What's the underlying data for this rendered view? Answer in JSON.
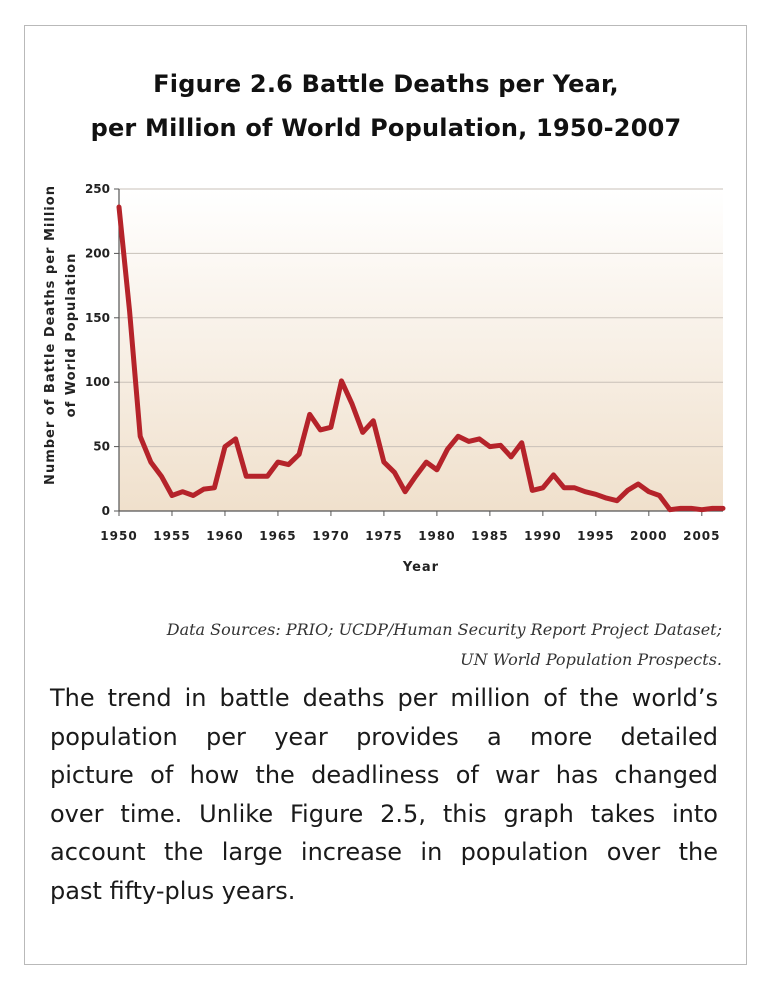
{
  "title_line1": "Figure 2.6 Battle Deaths per Year,",
  "title_line2": "per Million of World Population, 1950-2007",
  "source_line1": "Data Sources: PRIO; UCDP/Human Security Report Project Dataset;",
  "source_line2": "UN World Population Prospects.",
  "body_lines": [
    "The trend in battle deaths per million of the world’s",
    "population per year provides a more detailed",
    "picture of how the deadliness of war has changed",
    "over time. Unlike Figure 2.5, this graph takes into",
    "account the large increase in population over the",
    "past fifty-plus years."
  ],
  "colors": {
    "line": "#b5232a",
    "plot_bg_top": "#ffffff",
    "plot_bg_bottom": "#f0e0cc",
    "grid": "#c8c0b8"
  },
  "chart_data": {
    "type": "line",
    "xlabel": "Year",
    "ylabel_line1": "Number of Battle Deaths per Million",
    "ylabel_line2": "of World Population",
    "xlim": [
      1950,
      2007
    ],
    "ylim": [
      0,
      250
    ],
    "x_ticks": [
      1950,
      1955,
      1960,
      1965,
      1970,
      1975,
      1980,
      1985,
      1990,
      1995,
      2000,
      2005
    ],
    "y_ticks": [
      0,
      50,
      100,
      150,
      200,
      250
    ],
    "grid": true,
    "legend": "none",
    "x": [
      1950,
      1951,
      1952,
      1953,
      1954,
      1955,
      1956,
      1957,
      1958,
      1959,
      1960,
      1961,
      1962,
      1963,
      1964,
      1965,
      1966,
      1967,
      1968,
      1969,
      1970,
      1971,
      1972,
      1973,
      1974,
      1975,
      1976,
      1977,
      1978,
      1979,
      1980,
      1981,
      1982,
      1983,
      1984,
      1985,
      1986,
      1987,
      1988,
      1989,
      1990,
      1991,
      1992,
      1993,
      1994,
      1995,
      1996,
      1997,
      1998,
      1999,
      2000,
      2001,
      2002,
      2003,
      2004,
      2005,
      2006,
      2007
    ],
    "values": [
      236,
      155,
      58,
      38,
      27,
      12,
      15,
      12,
      17,
      18,
      50,
      56,
      27,
      27,
      27,
      38,
      36,
      44,
      75,
      63,
      65,
      101,
      83,
      61,
      70,
      38,
      30,
      15,
      27,
      38,
      32,
      48,
      58,
      54,
      56,
      50,
      51,
      42,
      53,
      16,
      18,
      28,
      18,
      18,
      15,
      13,
      10,
      8,
      16,
      21,
      15,
      12,
      1,
      2,
      2,
      1,
      2,
      2
    ]
  }
}
